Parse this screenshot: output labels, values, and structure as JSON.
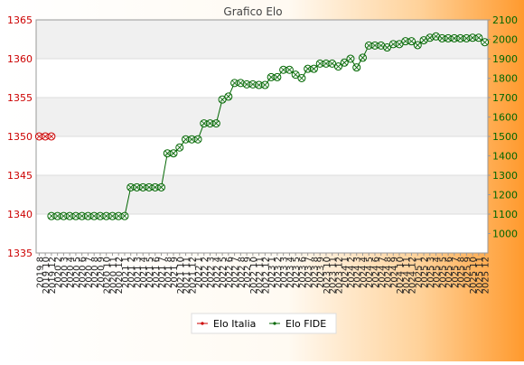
{
  "chart_data": {
    "type": "line",
    "title": "Grafico Elo",
    "x_labels": [
      "2019 8",
      "2019 10",
      "2019 12",
      "2020 2",
      "2020 3",
      "2020 4",
      "2020 5",
      "2020 6",
      "2020 7",
      "2020 8",
      "2020 9",
      "2020 10",
      "2020 11",
      "2020 12",
      "2021 1",
      "2021 2",
      "2021 3",
      "2021 4",
      "2021 5",
      "2021 6",
      "2021 7",
      "2021 8",
      "2021 9",
      "2021 10",
      "2021 11",
      "2021 12",
      "2022 1",
      "2022 2",
      "2022 3",
      "2022 4",
      "2022 5",
      "2022 6",
      "2022 7",
      "2022 8",
      "2022 9",
      "2022 10",
      "2022 11",
      "2022 12",
      "2023 1",
      "2023 2",
      "2023 3",
      "2023 4",
      "2023 5",
      "2023 6",
      "2023 7",
      "2023 8",
      "2023 9",
      "2023 10",
      "2023 11",
      "2023 12",
      "2024 1",
      "2024 2",
      "2024 3",
      "2024 4",
      "2024 5",
      "2024 6",
      "2024 7",
      "2024 8",
      "2024 9",
      "2024 10",
      "2024 11",
      "2024 12",
      "2025 1",
      "2025 2",
      "2025 3",
      "2025 4",
      "2025 5",
      "2025 6",
      "2025 7",
      "2025 8",
      "2025 9",
      "2025 10",
      "2025 11",
      "2025 12"
    ],
    "y_left": {
      "min": 1335,
      "max": 1365,
      "ticks": [
        1335,
        1340,
        1345,
        1350,
        1355,
        1360,
        1365
      ],
      "color": "#cc0000"
    },
    "y_right": {
      "min": 900,
      "max": 2100,
      "ticks": [
        1000,
        1100,
        1200,
        1300,
        1400,
        1500,
        1600,
        1700,
        1800,
        1900,
        2000,
        2100
      ],
      "color": "#006600"
    },
    "series": [
      {
        "name": "Elo Italia",
        "axis": "left",
        "color": "#cc0000",
        "x_index": [
          0,
          1,
          2
        ],
        "values": [
          1350,
          1350,
          1350
        ]
      },
      {
        "name": "Elo FIDE",
        "axis": "right",
        "color": "#006600",
        "x_index_start": 2,
        "values": [
          1090,
          1090,
          1090,
          1090,
          1090,
          1090,
          1090,
          1090,
          1090,
          1090,
          1090,
          1090,
          1090,
          1090,
          1090,
          1090,
          1090,
          1090,
          1090,
          1090,
          1090,
          1090,
          1090,
          1090,
          1090,
          1090,
          1090,
          1090,
          1090,
          1090,
          1090,
          1090,
          1090,
          1090,
          1090,
          1090,
          1090,
          1090,
          1090,
          1090,
          1090,
          1090,
          1090,
          1090,
          1090,
          1090,
          1090,
          1090,
          1090,
          1090,
          1090,
          1090,
          1090,
          1090,
          1090,
          1090,
          1090,
          1090,
          1090,
          1090,
          1090,
          1090,
          1090,
          1090,
          1090,
          1090,
          1090,
          1090,
          1090,
          1090,
          1090,
          1090
        ],
        "values_override": [
          1090,
          1090,
          1090,
          1090,
          1090,
          1090,
          1090,
          1090,
          1090,
          1090,
          1090,
          1090,
          1090,
          1238,
          1238,
          1238,
          1238,
          1238,
          1238,
          1413,
          1413,
          1443,
          1485,
          1485,
          1485,
          1567,
          1567,
          1567,
          1690,
          1705,
          1775,
          1775,
          1768,
          1768,
          1765,
          1765,
          1805,
          1805,
          1843,
          1843,
          1818,
          1800,
          1848,
          1848,
          1875,
          1875,
          1875,
          1860,
          1880,
          1900,
          1855,
          1905,
          1968,
          1968,
          1968,
          1958,
          1975,
          1975,
          1990,
          1990,
          1970,
          1995,
          2008,
          2015,
          2005,
          2005,
          2005,
          2005,
          2005,
          2008,
          2008,
          1985
        ]
      }
    ],
    "legend": {
      "placement": "bottom",
      "items": [
        "Elo Italia",
        "Elo FIDE"
      ]
    }
  }
}
